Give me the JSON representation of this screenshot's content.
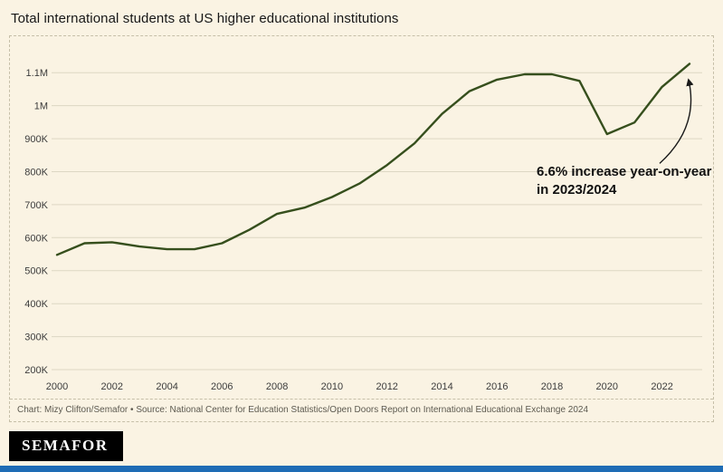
{
  "page": {
    "title": "Total international students at US higher educational institutions",
    "credits": "Chart: Mizy Clifton/Semafor • Source: National Center for Education Statistics/Open Doors Report on International Educational Exchange 2024",
    "logo_text": "SEMAFOR",
    "colors": {
      "background": "#faf3e3",
      "line": "#364f1d",
      "grid": "#ddd7c3",
      "border": "#c6bfa8",
      "accent_bar": "#1e6cb5",
      "annotation": "#111111"
    }
  },
  "chart_data": {
    "type": "line",
    "title": "Total international students at US higher educational institutions",
    "x": [
      2000,
      2001,
      2002,
      2003,
      2004,
      2005,
      2006,
      2007,
      2008,
      2009,
      2010,
      2011,
      2012,
      2013,
      2014,
      2015,
      2016,
      2017,
      2018,
      2019,
      2020,
      2021,
      2022,
      2023
    ],
    "values": [
      548000,
      583000,
      586000,
      573000,
      565000,
      565000,
      583000,
      624000,
      672000,
      691000,
      723000,
      764000,
      820000,
      886000,
      975000,
      1044000,
      1079000,
      1095000,
      1095000,
      1075000,
      914000,
      949000,
      1057000,
      1127000
    ],
    "ylim": [
      200000,
      1150000
    ],
    "yticks": [
      {
        "v": 200000,
        "label": "200K"
      },
      {
        "v": 300000,
        "label": "300K"
      },
      {
        "v": 400000,
        "label": "400K"
      },
      {
        "v": 500000,
        "label": "500K"
      },
      {
        "v": 600000,
        "label": "600K"
      },
      {
        "v": 700000,
        "label": "700K"
      },
      {
        "v": 800000,
        "label": "800K"
      },
      {
        "v": 900000,
        "label": "900K"
      },
      {
        "v": 1000000,
        "label": "1M"
      },
      {
        "v": 1100000,
        "label": "1.1M"
      }
    ],
    "xticks": [
      2000,
      2002,
      2004,
      2006,
      2008,
      2010,
      2012,
      2014,
      2016,
      2018,
      2020,
      2022
    ],
    "annotation": "6.6% increase year-on-year in 2023/2024",
    "xlabel": "",
    "ylabel": "",
    "legend": "none",
    "grid": "horizontal"
  }
}
